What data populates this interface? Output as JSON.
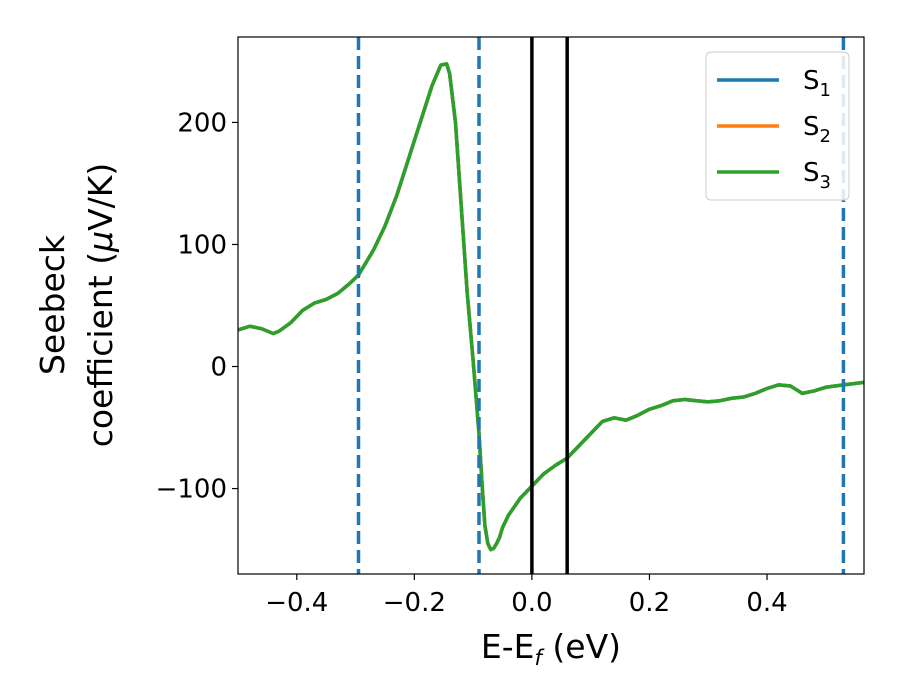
{
  "chart_data": {
    "type": "line",
    "xlabel": {
      "main": "E-E",
      "sub": "f",
      "tail": " (eV)"
    },
    "ylabel": {
      "line1": "Seebeck",
      "line2_prefix": "coefficient  (",
      "line2_mu": "μ",
      "line2_suffix": "V/K)"
    },
    "xlim": [
      -0.5,
      0.565
    ],
    "ylim": [
      -170,
      270
    ],
    "x_ticks": [
      {
        "value": -0.4,
        "label": "−0.4"
      },
      {
        "value": -0.2,
        "label": "−0.2"
      },
      {
        "value": 0.0,
        "label": "0.0"
      },
      {
        "value": 0.2,
        "label": "0.2"
      },
      {
        "value": 0.4,
        "label": "0.4"
      }
    ],
    "y_ticks": [
      {
        "value": 200,
        "label": "200"
      },
      {
        "value": 100,
        "label": "100"
      },
      {
        "value": 0,
        "label": "0"
      },
      {
        "value": -100,
        "label": "−100"
      }
    ],
    "vlines_dashed": {
      "x": [
        -0.295,
        -0.09,
        0.53
      ],
      "color": "#1f77b4"
    },
    "vlines_solid": {
      "x": [
        0.0,
        0.06
      ],
      "color": "#000000"
    },
    "legend": {
      "position": "top-right",
      "entries": [
        {
          "main": "S",
          "sub": "1",
          "color": "#1f77b4"
        },
        {
          "main": "S",
          "sub": "2",
          "color": "#ff7f0e"
        },
        {
          "main": "S",
          "sub": "3",
          "color": "#2ca02c"
        }
      ]
    },
    "x": [
      -0.5,
      -0.48,
      -0.46,
      -0.44,
      -0.43,
      -0.41,
      -0.39,
      -0.37,
      -0.35,
      -0.33,
      -0.31,
      -0.295,
      -0.27,
      -0.25,
      -0.23,
      -0.21,
      -0.19,
      -0.17,
      -0.155,
      -0.145,
      -0.14,
      -0.13,
      -0.12,
      -0.11,
      -0.1,
      -0.09,
      -0.085,
      -0.08,
      -0.075,
      -0.07,
      -0.065,
      -0.06,
      -0.055,
      -0.05,
      -0.04,
      -0.03,
      -0.02,
      -0.01,
      0.0,
      0.02,
      0.04,
      0.06,
      0.08,
      0.1,
      0.12,
      0.14,
      0.16,
      0.18,
      0.2,
      0.22,
      0.24,
      0.26,
      0.28,
      0.3,
      0.32,
      0.34,
      0.36,
      0.38,
      0.4,
      0.42,
      0.44,
      0.46,
      0.48,
      0.5,
      0.53,
      0.565
    ],
    "series": [
      {
        "name": "S1",
        "color": "#1f77b4",
        "values": [
          30,
          33,
          31,
          27,
          29,
          36,
          46,
          52,
          55,
          60,
          68,
          75,
          95,
          115,
          140,
          170,
          200,
          230,
          247,
          248,
          240,
          200,
          130,
          60,
          5,
          -55,
          -95,
          -130,
          -145,
          -150,
          -149,
          -145,
          -140,
          -132,
          -122,
          -115,
          -108,
          -103,
          -98,
          -88,
          -81,
          -75,
          -65,
          -55,
          -45,
          -42,
          -44,
          -40,
          -35,
          -32,
          -28,
          -27,
          -28,
          -29,
          -28,
          -26,
          -25,
          -22,
          -18,
          -15,
          -16,
          -22,
          -20,
          -17,
          -15,
          -13
        ]
      },
      {
        "name": "S2",
        "color": "#ff7f0e",
        "values": [
          30,
          33,
          31,
          27,
          29,
          36,
          46,
          52,
          55,
          60,
          68,
          75,
          95,
          115,
          140,
          170,
          200,
          230,
          247,
          248,
          240,
          200,
          130,
          60,
          5,
          -55,
          -95,
          -130,
          -145,
          -150,
          -149,
          -145,
          -140,
          -132,
          -122,
          -115,
          -108,
          -103,
          -98,
          -88,
          -81,
          -75,
          -65,
          -55,
          -45,
          -42,
          -44,
          -40,
          -35,
          -32,
          -28,
          -27,
          -28,
          -29,
          -28,
          -26,
          -25,
          -22,
          -18,
          -15,
          -16,
          -22,
          -20,
          -17,
          -15,
          -13
        ]
      },
      {
        "name": "S3",
        "color": "#2ca02c",
        "values": [
          30,
          33,
          31,
          27,
          29,
          36,
          46,
          52,
          55,
          60,
          68,
          75,
          95,
          115,
          140,
          170,
          200,
          230,
          247,
          248,
          240,
          200,
          130,
          60,
          5,
          -55,
          -95,
          -130,
          -145,
          -150,
          -149,
          -145,
          -140,
          -132,
          -122,
          -115,
          -108,
          -103,
          -98,
          -88,
          -81,
          -75,
          -65,
          -55,
          -45,
          -42,
          -44,
          -40,
          -35,
          -32,
          -28,
          -27,
          -28,
          -29,
          -28,
          -26,
          -25,
          -22,
          -18,
          -15,
          -16,
          -22,
          -20,
          -17,
          -15,
          -13
        ]
      }
    ]
  }
}
